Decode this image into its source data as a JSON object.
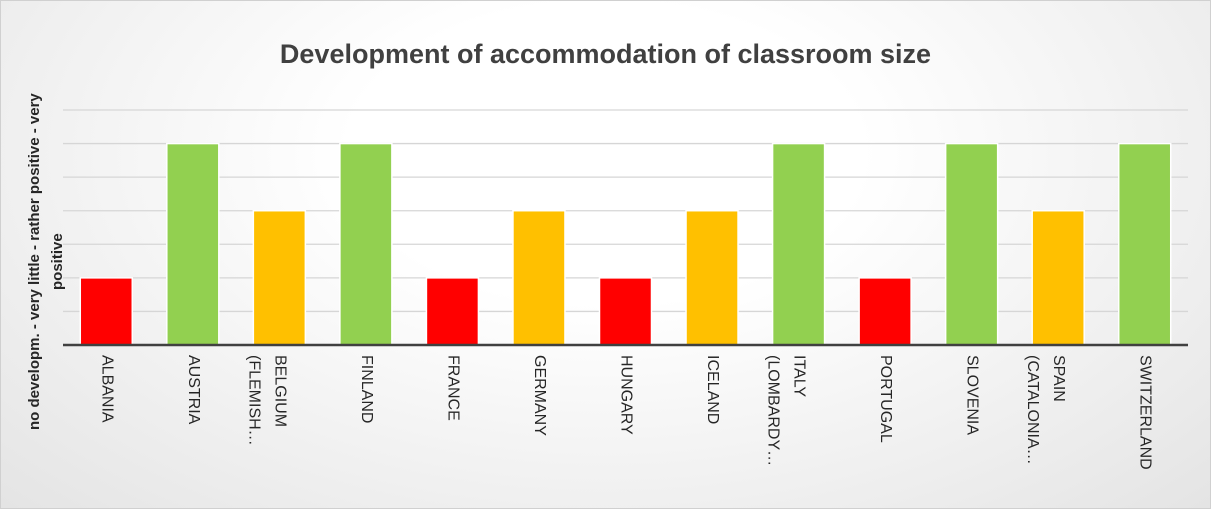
{
  "chart_data": {
    "type": "bar",
    "title": "Development of accommodation of classroom size",
    "y_label": "no developm. - very little - rather positive - very positive",
    "categories": [
      "ALBANIA",
      "AUSTRIA",
      "BELGIUM (FLEMISH…",
      "FINLAND",
      "FRANCE",
      "GERMANY",
      "HUNGARY",
      "ICELAND",
      "ITALY (LOMBARDY…",
      "PORTUGAL",
      "SLOVENIA",
      "SPAIN (CATALONIA…",
      "SWITZERLAND"
    ],
    "values": [
      1,
      3,
      2,
      3,
      1,
      2,
      1,
      2,
      3,
      1,
      3,
      2,
      3
    ],
    "colors": [
      "#ff0000",
      "#92d050",
      "#ffc000",
      "#92d050",
      "#ff0000",
      "#ffc000",
      "#ff0000",
      "#ffc000",
      "#92d050",
      "#ff0000",
      "#92d050",
      "#ffc000",
      "#92d050"
    ],
    "ylim": [
      0,
      3.5
    ],
    "yticks": [
      0,
      0.5,
      1,
      1.5,
      2,
      2.5,
      3,
      3.5
    ],
    "grid": true
  }
}
